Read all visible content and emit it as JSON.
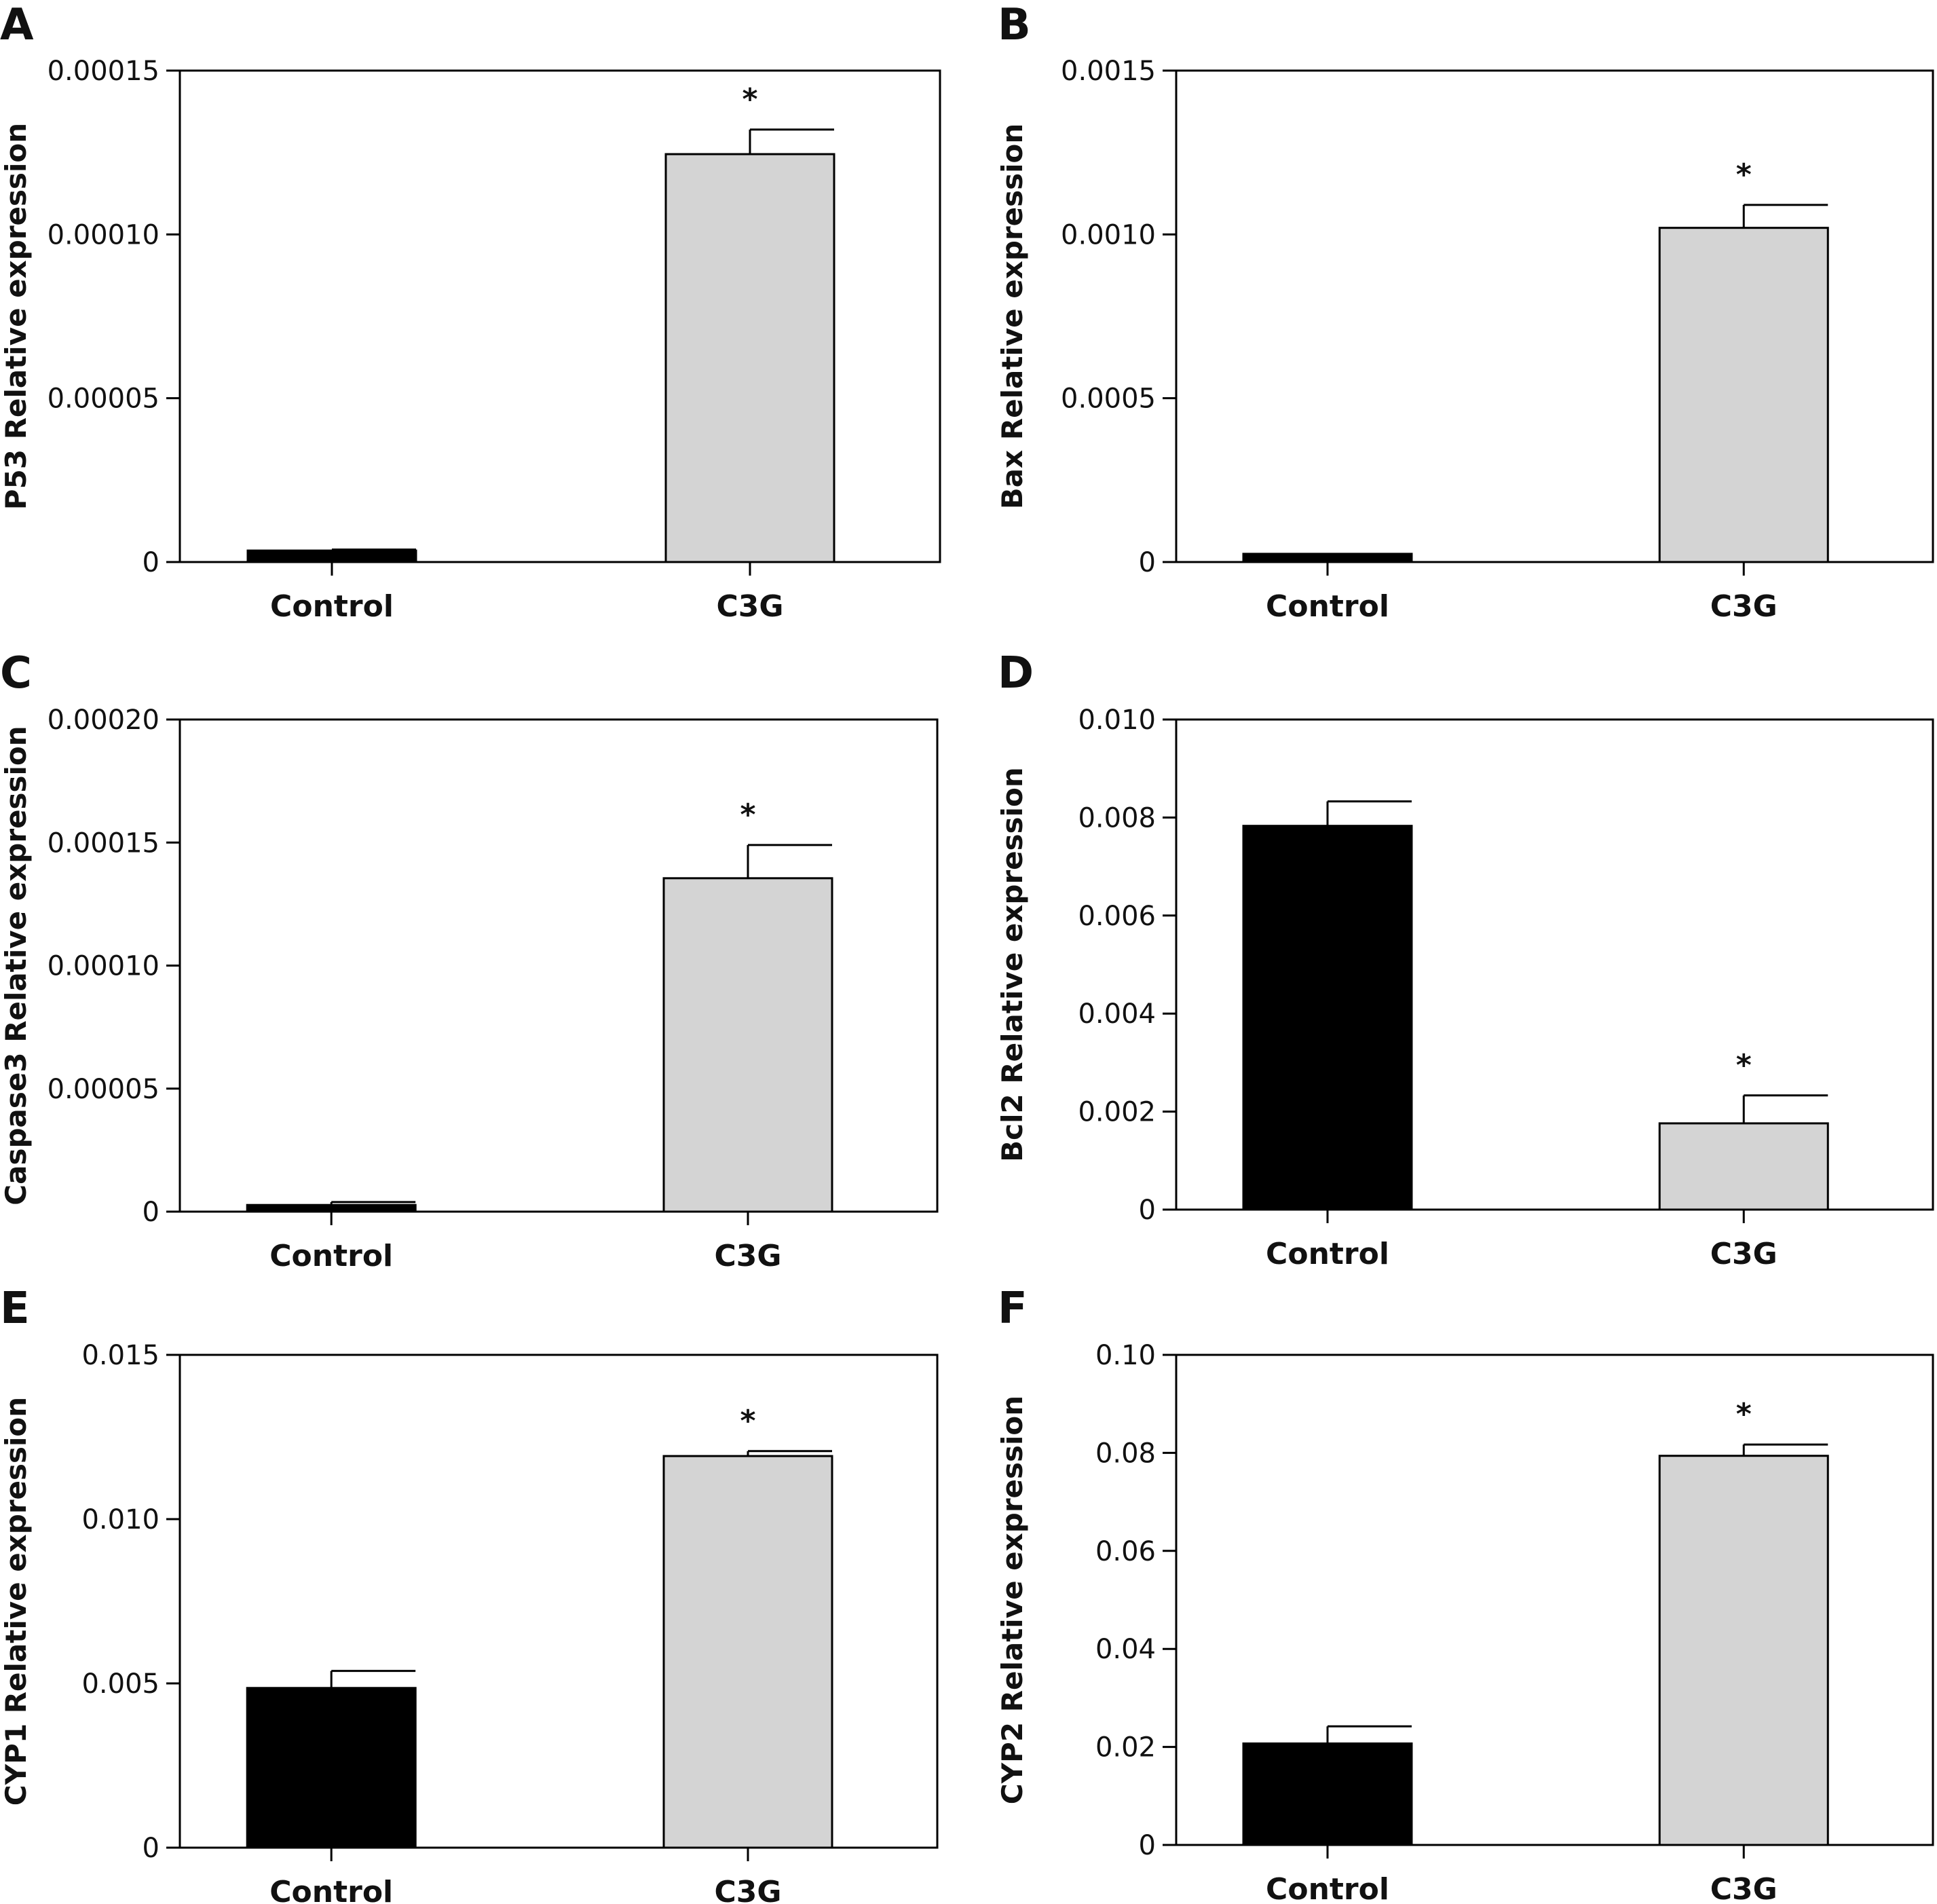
{
  "chart_data": [
    {
      "panel": "A",
      "type": "bar",
      "categories": [
        "Control",
        "C3G"
      ],
      "values": [
        3.5e-06,
        0.0001245
      ],
      "errors": [
        3e-07,
        7.5e-06
      ],
      "significance": [
        "",
        "*"
      ],
      "ylabel": "P53 Relative expression",
      "ylim": [
        0,
        0.00015
      ],
      "yticks": [
        0,
        5e-05,
        0.0001,
        0.00015
      ],
      "ytick_labels": [
        "0",
        "0.00005",
        "0.00010",
        "0.00015"
      ],
      "colors": [
        "#000000",
        "#d4d4d4"
      ]
    },
    {
      "panel": "B",
      "type": "bar",
      "categories": [
        "Control",
        "C3G"
      ],
      "values": [
        2.5e-05,
        0.00102
      ],
      "errors": [
        0,
        7e-05
      ],
      "significance": [
        "",
        "*"
      ],
      "ylabel": "Bax Relative expression",
      "ylim": [
        0,
        0.0015
      ],
      "yticks": [
        0,
        0.0005,
        0.001,
        0.0015
      ],
      "ytick_labels": [
        "0",
        "0.0005",
        "0.0010",
        "0.0015"
      ],
      "colors": [
        "#000000",
        "#d4d4d4"
      ]
    },
    {
      "panel": "C",
      "type": "bar",
      "categories": [
        "Control",
        "C3G"
      ],
      "values": [
        2.7e-06,
        0.0001355
      ],
      "errors": [
        1.2e-06,
        1.35e-05
      ],
      "significance": [
        "",
        "*"
      ],
      "ylabel": "Caspase3 Relative expression",
      "ylim": [
        0,
        0.0002
      ],
      "yticks": [
        0,
        5e-05,
        0.0001,
        0.00015,
        0.0002
      ],
      "ytick_labels": [
        "0",
        "0.00005",
        "0.00010",
        "0.00015",
        "0.00020"
      ],
      "colors": [
        "#000000",
        "#d4d4d4"
      ]
    },
    {
      "panel": "D",
      "type": "bar",
      "categories": [
        "Control",
        "C3G"
      ],
      "values": [
        0.00783,
        0.00176
      ],
      "errors": [
        0.0005,
        0.00057
      ],
      "significance": [
        "",
        "*"
      ],
      "ylabel": "Bcl2 Relative expression",
      "ylim": [
        0,
        0.01
      ],
      "yticks": [
        0,
        0.002,
        0.004,
        0.006,
        0.008,
        0.01
      ],
      "ytick_labels": [
        "0",
        "0.002",
        "0.004",
        "0.006",
        "0.008",
        "0.010"
      ],
      "colors": [
        "#000000",
        "#d4d4d4"
      ]
    },
    {
      "panel": "E",
      "type": "bar",
      "categories": [
        "Control",
        "C3G"
      ],
      "values": [
        0.00486,
        0.01192
      ],
      "errors": [
        0.00052,
        0.00015
      ],
      "significance": [
        "",
        "*"
      ],
      "ylabel": "CYP1 Relative expression",
      "ylim": [
        0,
        0.015
      ],
      "yticks": [
        0,
        0.005,
        0.01,
        0.015
      ],
      "ytick_labels": [
        "0",
        "0.005",
        "0.010",
        "0.015"
      ],
      "colors": [
        "#000000",
        "#d4d4d4"
      ]
    },
    {
      "panel": "F",
      "type": "bar",
      "categories": [
        "Control",
        "C3G"
      ],
      "values": [
        0.0207,
        0.0794
      ],
      "errors": [
        0.0035,
        0.0023
      ],
      "significance": [
        "",
        "*"
      ],
      "ylabel": "CYP2 Relative expression",
      "ylim": [
        0,
        0.1
      ],
      "yticks": [
        0,
        0.02,
        0.04,
        0.06,
        0.08,
        0.1
      ],
      "ytick_labels": [
        "0",
        "0.02",
        "0.04",
        "0.06",
        "0.08",
        "0.10"
      ],
      "colors": [
        "#000000",
        "#d4d4d4"
      ]
    }
  ]
}
